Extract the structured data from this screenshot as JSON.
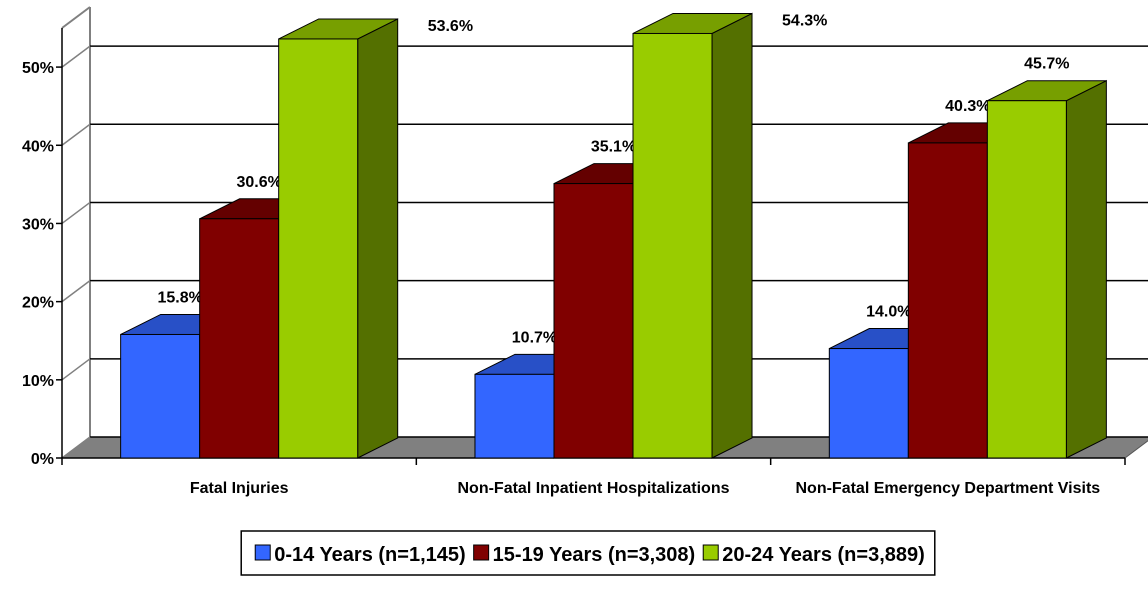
{
  "chart_data": {
    "type": "bar3d",
    "categories": [
      "Fatal Injuries",
      "Non-Fatal Inpatient Hospitalizations",
      "Non-Fatal Emergency Department Visits"
    ],
    "series": [
      {
        "name": "0-14 Years (n=1,145)",
        "color": "#3366ff",
        "values": [
          15.8,
          10.7,
          14.0
        ],
        "value_labels": [
          "15.8%",
          "10.7%",
          "14.0%"
        ]
      },
      {
        "name": "15-19 Years (n=3,308)",
        "color": "#800000",
        "values": [
          30.6,
          35.1,
          40.3
        ],
        "value_labels": [
          "30.6%",
          "35.1%",
          "40.3%"
        ]
      },
      {
        "name": "20-24 Years (n=3,889)",
        "color": "#99cc00",
        "values": [
          53.6,
          54.3,
          45.7
        ],
        "value_labels": [
          "53.6%",
          "54.3%",
          "45.7%"
        ]
      }
    ],
    "ylim": [
      0,
      55
    ],
    "yticks": [
      {
        "value": 0,
        "label": "0%"
      },
      {
        "value": 10,
        "label": "10%"
      },
      {
        "value": 20,
        "label": "20%"
      },
      {
        "value": 30,
        "label": "30%"
      },
      {
        "value": 40,
        "label": "40%"
      },
      {
        "value": 50,
        "label": "50%"
      }
    ],
    "grid": true
  }
}
